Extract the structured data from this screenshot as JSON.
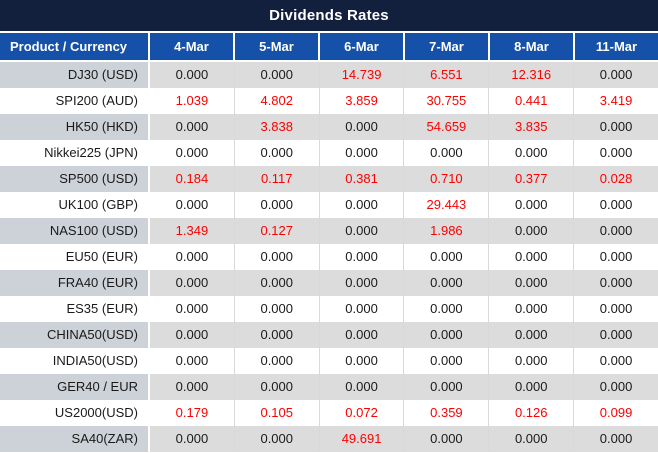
{
  "header": {
    "title": "Dividends Rates"
  },
  "colors": {
    "title_bg": "#12203E",
    "header_bg": "#1551A8",
    "stripe_label": "#CDD1D8",
    "stripe_data": "#DCDCDC",
    "value_red": "#FE0000",
    "value_black": "#1A1A1A",
    "grid_line": "#D9D9D9"
  },
  "table": {
    "columns": [
      "Product / Currency",
      "4-Mar",
      "5-Mar",
      "6-Mar",
      "7-Mar",
      "8-Mar",
      "11-Mar"
    ],
    "rows": [
      {
        "label": "DJ30 (USD)",
        "values": [
          "0.000",
          "0.000",
          "14.739",
          "6.551",
          "12.316",
          "0.000"
        ],
        "red": [
          false,
          false,
          true,
          true,
          true,
          false
        ]
      },
      {
        "label": "SPI200 (AUD)",
        "values": [
          "1.039",
          "4.802",
          "3.859",
          "30.755",
          "0.441",
          "3.419"
        ],
        "red": [
          true,
          true,
          true,
          true,
          true,
          true
        ]
      },
      {
        "label": "HK50 (HKD)",
        "values": [
          "0.000",
          "3.838",
          "0.000",
          "54.659",
          "3.835",
          "0.000"
        ],
        "red": [
          false,
          true,
          false,
          true,
          true,
          false
        ]
      },
      {
        "label": "Nikkei225 (JPN)",
        "values": [
          "0.000",
          "0.000",
          "0.000",
          "0.000",
          "0.000",
          "0.000"
        ],
        "red": [
          false,
          false,
          false,
          false,
          false,
          false
        ]
      },
      {
        "label": "SP500 (USD)",
        "values": [
          "0.184",
          "0.117",
          "0.381",
          "0.710",
          "0.377",
          "0.028"
        ],
        "red": [
          true,
          true,
          true,
          true,
          true,
          true
        ]
      },
      {
        "label": "UK100 (GBP)",
        "values": [
          "0.000",
          "0.000",
          "0.000",
          "29.443",
          "0.000",
          "0.000"
        ],
        "red": [
          false,
          false,
          false,
          true,
          false,
          false
        ]
      },
      {
        "label": "NAS100 (USD)",
        "values": [
          "1.349",
          "0.127",
          "0.000",
          "1.986",
          "0.000",
          "0.000"
        ],
        "red": [
          true,
          true,
          false,
          true,
          false,
          false
        ]
      },
      {
        "label": "EU50 (EUR)",
        "values": [
          "0.000",
          "0.000",
          "0.000",
          "0.000",
          "0.000",
          "0.000"
        ],
        "red": [
          false,
          false,
          false,
          false,
          false,
          false
        ]
      },
      {
        "label": "FRA40 (EUR)",
        "values": [
          "0.000",
          "0.000",
          "0.000",
          "0.000",
          "0.000",
          "0.000"
        ],
        "red": [
          false,
          false,
          false,
          false,
          false,
          false
        ]
      },
      {
        "label": "ES35 (EUR)",
        "values": [
          "0.000",
          "0.000",
          "0.000",
          "0.000",
          "0.000",
          "0.000"
        ],
        "red": [
          false,
          false,
          false,
          false,
          false,
          false
        ]
      },
      {
        "label": "CHINA50(USD)",
        "values": [
          "0.000",
          "0.000",
          "0.000",
          "0.000",
          "0.000",
          "0.000"
        ],
        "red": [
          false,
          false,
          false,
          false,
          false,
          false
        ]
      },
      {
        "label": "INDIA50(USD)",
        "values": [
          "0.000",
          "0.000",
          "0.000",
          "0.000",
          "0.000",
          "0.000"
        ],
        "red": [
          false,
          false,
          false,
          false,
          false,
          false
        ]
      },
      {
        "label": "GER40 / EUR",
        "values": [
          "0.000",
          "0.000",
          "0.000",
          "0.000",
          "0.000",
          "0.000"
        ],
        "red": [
          false,
          false,
          false,
          false,
          false,
          false
        ]
      },
      {
        "label": "US2000(USD)",
        "values": [
          "0.179",
          "0.105",
          "0.072",
          "0.359",
          "0.126",
          "0.099"
        ],
        "red": [
          true,
          true,
          true,
          true,
          true,
          true
        ]
      },
      {
        "label": "SA40(ZAR)",
        "values": [
          "0.000",
          "0.000",
          "49.691",
          "0.000",
          "0.000",
          "0.000"
        ],
        "red": [
          false,
          false,
          true,
          false,
          false,
          false
        ]
      }
    ]
  }
}
